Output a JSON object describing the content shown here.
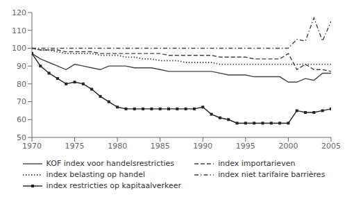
{
  "chart_data": {
    "type": "line",
    "x": [
      1970,
      1971,
      1972,
      1973,
      1974,
      1975,
      1976,
      1977,
      1978,
      1979,
      1980,
      1981,
      1982,
      1983,
      1984,
      1985,
      1986,
      1987,
      1988,
      1989,
      1990,
      1991,
      1992,
      1993,
      1994,
      1995,
      1996,
      1997,
      1998,
      1999,
      2000,
      2001,
      2002,
      2003,
      2004,
      2005
    ],
    "xlim": [
      1970,
      2005
    ],
    "ylim": [
      50,
      120
    ],
    "xticks": [
      1970,
      1975,
      1980,
      1985,
      1990,
      1995,
      2000,
      2005
    ],
    "yticks": [
      50,
      60,
      70,
      80,
      90,
      100,
      110,
      120
    ],
    "grid": false,
    "series": [
      {
        "name": "KOF index voor handelsrestricties",
        "color": "#444444",
        "line_style": "solid",
        "values": [
          97,
          94,
          92,
          90,
          88,
          91,
          90,
          89,
          88,
          90,
          90,
          90,
          89,
          89,
          89,
          88,
          87,
          87,
          87,
          87,
          87,
          87,
          86,
          85,
          85,
          85,
          84,
          84,
          84,
          84,
          81,
          81,
          83,
          82,
          86,
          86
        ]
      },
      {
        "name": "index importarieven",
        "color": "#444444",
        "line_style": "dashed",
        "values": [
          100,
          99,
          99,
          99,
          98,
          98,
          98,
          98,
          97,
          97,
          97,
          97,
          97,
          97,
          97,
          97,
          96,
          96,
          96,
          96,
          96,
          96,
          95,
          95,
          95,
          95,
          94,
          94,
          94,
          94,
          97,
          88,
          91,
          88,
          88,
          87
        ]
      },
      {
        "name": "index belasting op handel",
        "color": "#444444",
        "line_style": "dotted",
        "values": [
          100,
          99,
          99,
          98,
          97,
          97,
          97,
          97,
          96,
          96,
          96,
          95,
          95,
          94,
          94,
          93,
          93,
          93,
          92,
          92,
          92,
          92,
          91,
          91,
          91,
          91,
          91,
          91,
          91,
          91,
          91,
          91,
          91,
          91,
          91,
          91
        ]
      },
      {
        "name": "index niet tarifaire barrières",
        "color": "#444444",
        "line_style": "dashdot",
        "values": [
          100,
          100,
          100,
          100,
          100,
          100,
          100,
          100,
          100,
          100,
          100,
          100,
          100,
          100,
          100,
          100,
          100,
          100,
          100,
          100,
          100,
          100,
          100,
          100,
          100,
          100,
          100,
          100,
          100,
          100,
          100,
          105,
          104,
          117,
          104,
          115
        ]
      },
      {
        "name": "index restricties op kapitaalverkeer",
        "color": "#222222",
        "line_style": "solid",
        "marker": "square",
        "values": [
          97,
          90,
          86,
          83,
          80,
          81,
          80,
          77,
          73,
          70,
          67,
          66,
          66,
          66,
          66,
          66,
          66,
          66,
          66,
          66,
          67,
          63,
          61,
          60,
          58,
          58,
          58,
          58,
          58,
          58,
          58,
          65,
          64,
          64,
          65,
          66
        ]
      }
    ]
  }
}
